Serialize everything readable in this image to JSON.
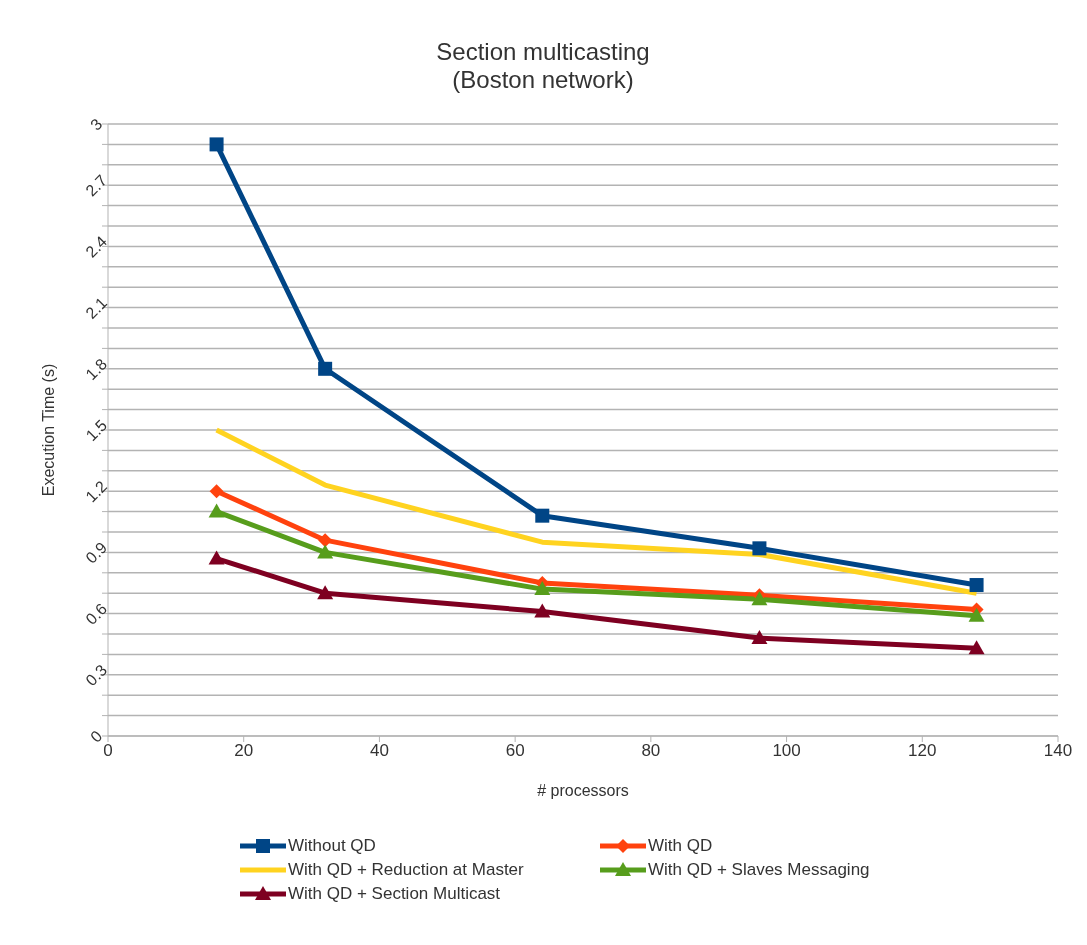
{
  "chart_data": {
    "type": "line",
    "title": "Section multicasting",
    "subtitle": "(Boston network)",
    "xlabel": "# processors",
    "ylabel": "Execution Time (s)",
    "x": [
      16,
      32,
      64,
      96,
      128
    ],
    "series": [
      {
        "name": "Without QD",
        "color": "#004586",
        "marker": "square",
        "values": [
          2.9,
          1.8,
          1.08,
          0.92,
          0.74
        ]
      },
      {
        "name": "With QD",
        "color": "#ff420e",
        "marker": "diamond",
        "values": [
          1.2,
          0.96,
          0.75,
          0.69,
          0.62
        ]
      },
      {
        "name": "With QD + Reduction at Master",
        "color": "#ffd320",
        "marker": "none",
        "values": [
          1.5,
          1.23,
          0.95,
          0.89,
          0.7
        ]
      },
      {
        "name": "With QD + Slaves Messaging",
        "color": "#579d1c",
        "marker": "triangle",
        "values": [
          1.1,
          0.9,
          0.72,
          0.67,
          0.59
        ]
      },
      {
        "name": "With QD + Section Multicast",
        "color": "#7e0021",
        "marker": "triangle",
        "values": [
          0.87,
          0.7,
          0.61,
          0.48,
          0.43
        ]
      }
    ],
    "xlim": [
      0,
      140
    ],
    "xticks": [
      0,
      20,
      40,
      60,
      80,
      100,
      120,
      140
    ],
    "ylim": [
      0,
      3
    ],
    "yticks": [
      0,
      {
        "value": 0.1,
        "label": null
      },
      {
        "value": 0.2,
        "label": null
      },
      0.3,
      {
        "value": 0.4,
        "label": null
      },
      {
        "value": 0.5,
        "label": null
      },
      0.6,
      {
        "value": 0.7,
        "label": null
      },
      {
        "value": 0.8,
        "label": null
      },
      0.9,
      {
        "value": 1.0,
        "label": null
      },
      {
        "value": 1.1,
        "label": null
      },
      1.2,
      {
        "value": 1.3,
        "label": null
      },
      {
        "value": 1.4,
        "label": null
      },
      1.5,
      {
        "value": 1.6,
        "label": null
      },
      {
        "value": 1.7,
        "label": null
      },
      1.8,
      {
        "value": 1.9,
        "label": null
      },
      {
        "value": 2.0,
        "label": null
      },
      2.1,
      {
        "value": 2.2,
        "label": null
      },
      {
        "value": 2.3,
        "label": null
      },
      2.4,
      {
        "value": 2.5,
        "label": null
      },
      {
        "value": 2.6,
        "label": null
      },
      2.7,
      {
        "value": 2.8,
        "label": null
      },
      {
        "value": 2.9,
        "label": null
      },
      3
    ],
    "grid": "y",
    "legend": "bottom",
    "line_style": "solid"
  }
}
